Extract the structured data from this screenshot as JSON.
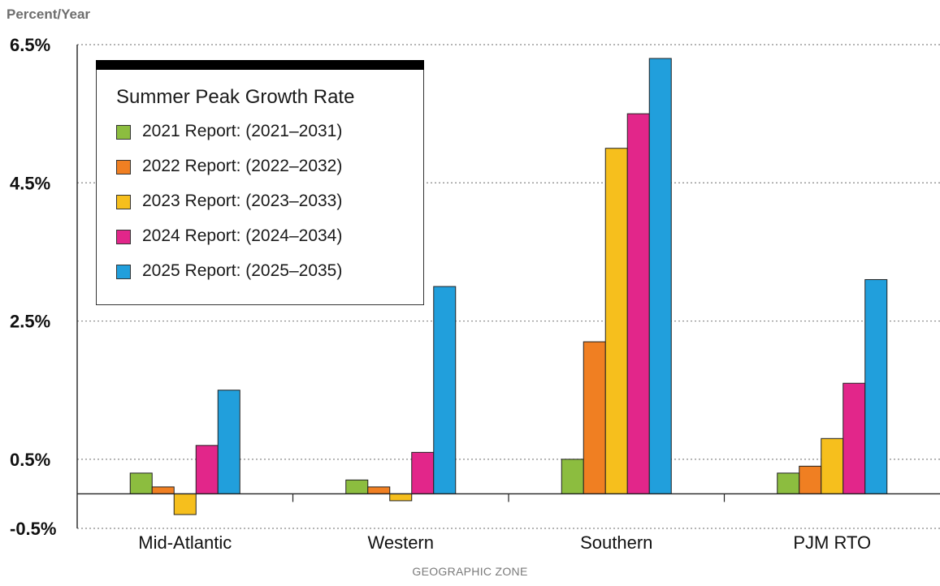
{
  "chart_data": {
    "type": "bar",
    "ylabel": "Percent/Year",
    "xlabel": "GEOGRAPHIC ZONE",
    "ylim": [
      -0.5,
      6.5
    ],
    "yticks": [
      "6.5%",
      "4.5%",
      "2.5%",
      "0.5%",
      "-0.5%"
    ],
    "ytick_values": [
      6.5,
      4.5,
      2.5,
      0.5,
      -0.5
    ],
    "grid": true,
    "legend_title": "Summer Peak Growth Rate",
    "legend_position": "top-left",
    "categories": [
      "Mid-Atlantic",
      "Western",
      "Southern",
      "PJM RTO"
    ],
    "series": [
      {
        "name": "2021 Report: (2021–2031)",
        "color": "#8cbd3f",
        "values": [
          0.3,
          0.2,
          0.5,
          0.3
        ]
      },
      {
        "name": "2022 Report: (2022–2032)",
        "color": "#f07f22",
        "values": [
          0.1,
          0.1,
          2.2,
          0.4
        ]
      },
      {
        "name": "2023 Report: (2023–2033)",
        "color": "#f6bf1d",
        "values": [
          -0.3,
          -0.1,
          5.0,
          0.8
        ]
      },
      {
        "name": "2024 Report: (2024–2034)",
        "color": "#e2268a",
        "values": [
          0.7,
          0.6,
          5.5,
          1.6
        ]
      },
      {
        "name": "2025 Report: (2025–2035)",
        "color": "#219fdc",
        "values": [
          1.5,
          3.0,
          6.3,
          3.1
        ]
      }
    ]
  }
}
